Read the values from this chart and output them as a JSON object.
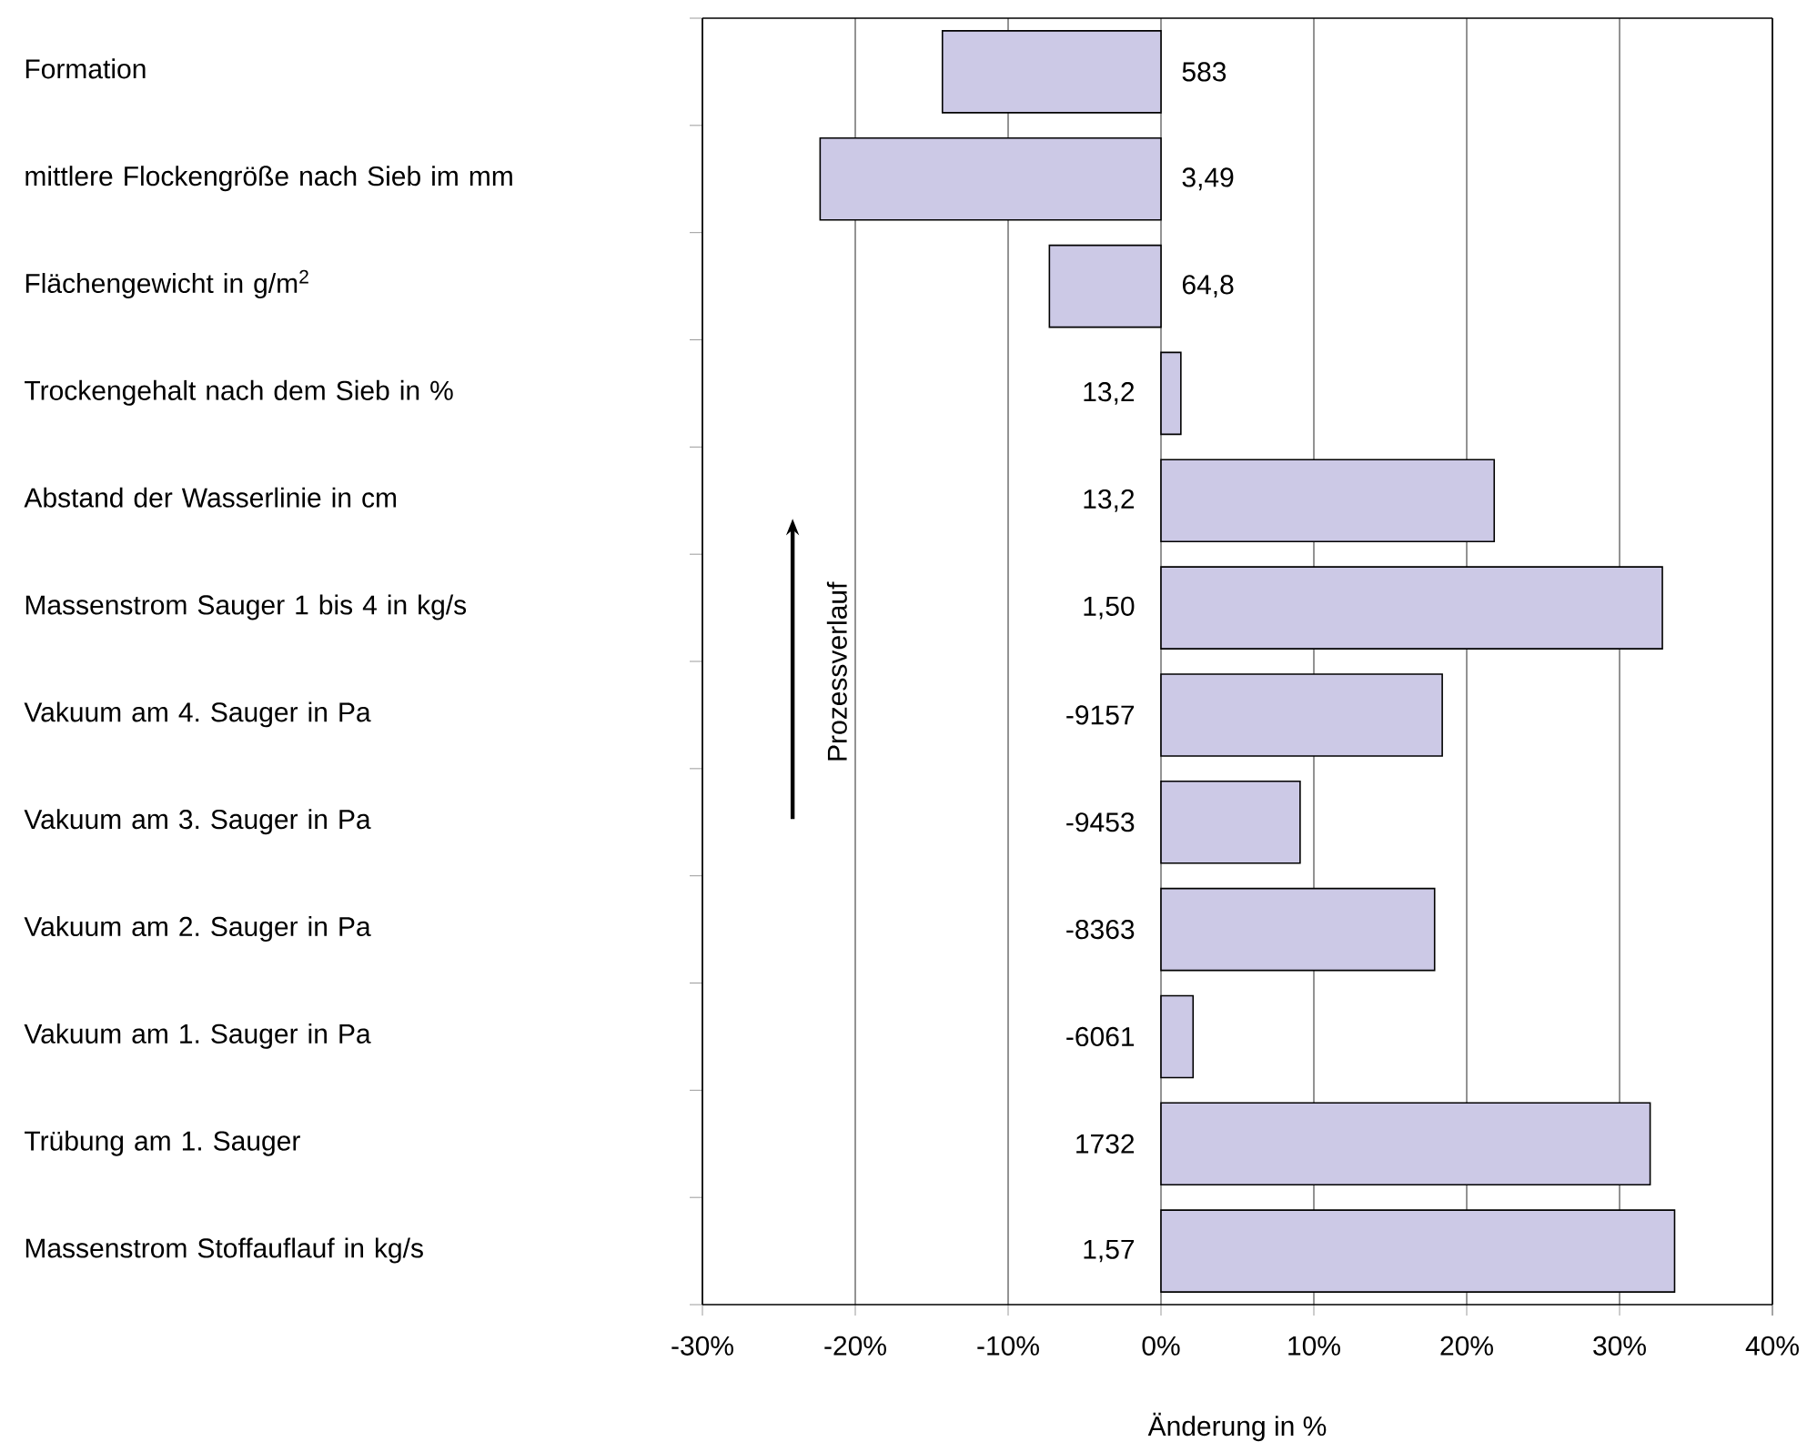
{
  "chart_data": {
    "type": "bar",
    "orientation": "horizontal",
    "categories": [
      "Formation",
      "mittlere Flockengröße nach Sieb im mm",
      "Flächengewicht in g/m$^{2}$",
      "Trockengehalt nach dem Sieb in %",
      "Abstand der Wasserlinie in cm",
      "Massenstrom Sauger 1 bis 4 in kg/s",
      "Vakuum am 4. Sauger in Pa",
      "Vakuum am 3. Sauger in Pa",
      "Vakuum am 2. Sauger in Pa",
      "Vakuum am 1. Sauger in Pa",
      "Trübung am 1. Sauger",
      "Massenstrom Stoffauflauf in kg/s"
    ],
    "values": [
      -14.3,
      -22.3,
      -7.3,
      1.3,
      21.8,
      32.8,
      18.4,
      9.1,
      17.9,
      2.1,
      32.0,
      33.6
    ],
    "color": "#ccc9e6",
    "xlim": [
      -30,
      40
    ],
    "xticks": [
      {
        "value": -30,
        "label": "-30%"
      },
      {
        "value": -20,
        "label": "-20%"
      },
      {
        "value": -10,
        "label": "-10%"
      },
      {
        "value": 0,
        "label": "0%"
      },
      {
        "value": 10,
        "label": "10%"
      },
      {
        "value": 20,
        "label": "20%"
      },
      {
        "value": 30,
        "label": "30%"
      },
      {
        "value": 40,
        "label": "40%"
      }
    ],
    "xlabel": "Änderung in %",
    "grid": "x",
    "annotations": [
      "583",
      "3,49",
      "64,8",
      "13,2",
      "13,2",
      "1,50",
      "-9157",
      "-9453",
      "-8363",
      "-6061",
      "1732",
      "1,57",
      "Prozessverlauf"
    ]
  }
}
